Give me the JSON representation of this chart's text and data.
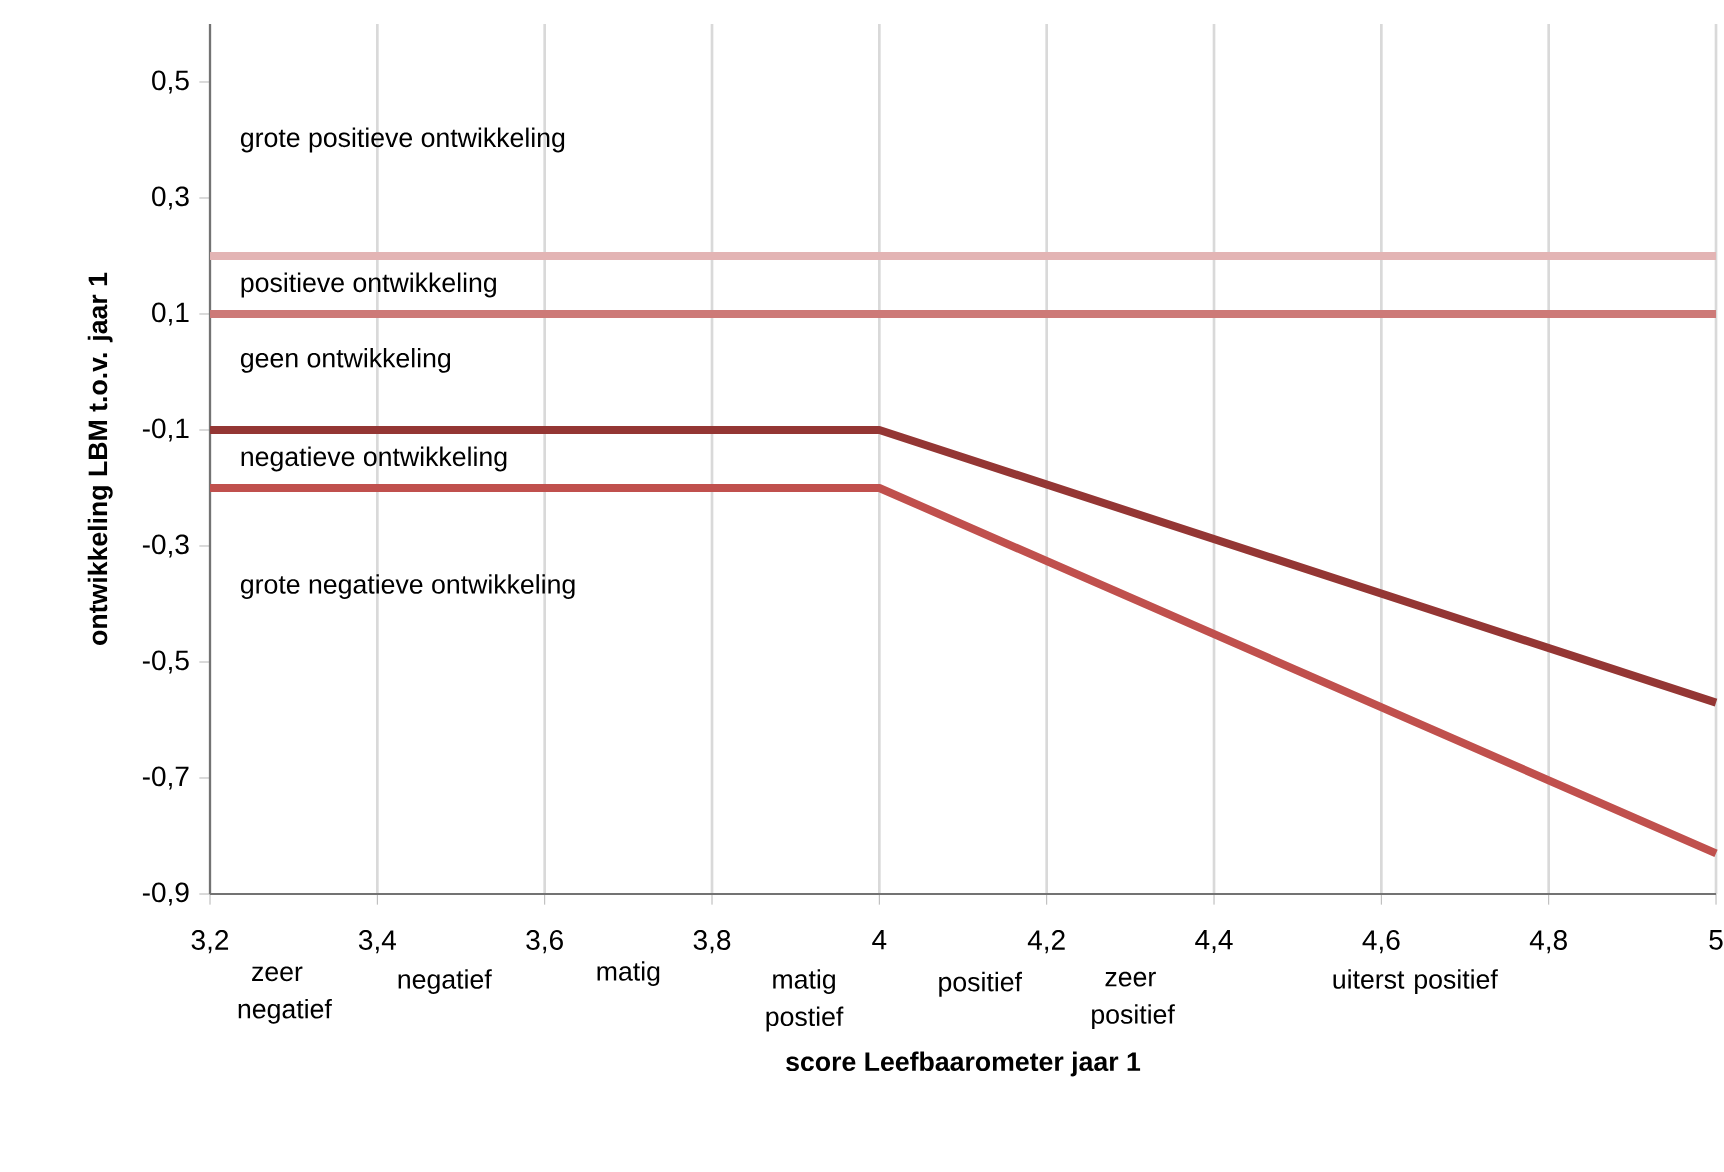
{
  "chart_data": {
    "type": "line",
    "xlabel": "score Leefbaarometer jaar 1",
    "ylabel": "ontwikkeling LBM t.o.v. jaar 1",
    "x": [
      3.2,
      4,
      5
    ],
    "series": [
      {
        "color": "#943634",
        "values": [
          -0.1,
          -0.1,
          -0.57
        ]
      },
      {
        "color": "#c0504d",
        "values": [
          -0.2,
          -0.2,
          -0.83
        ]
      }
    ],
    "xlim": [
      3.2,
      5
    ],
    "ylim": [
      -0.9,
      0.6
    ],
    "xticks": [
      {
        "value": 3.2,
        "label": "3,2"
      },
      {
        "value": 3.4,
        "label": "3,4"
      },
      {
        "value": 3.6,
        "label": "3,6"
      },
      {
        "value": 3.8,
        "label": "3,8"
      },
      {
        "value": 4,
        "label": "4"
      },
      {
        "value": 4.2,
        "label": "4,2"
      },
      {
        "value": 4.4,
        "label": "4,4"
      },
      {
        "value": 4.6,
        "label": "4,6"
      },
      {
        "value": 4.8,
        "label": "4,8"
      },
      {
        "value": 5,
        "label": "5"
      }
    ],
    "yticks": [
      {
        "value": -0.9,
        "label": "-0,9"
      },
      {
        "value": -0.7,
        "label": "-0,7"
      },
      {
        "value": -0.5,
        "label": "-0,5"
      },
      {
        "value": -0.3,
        "label": "-0,3"
      },
      {
        "value": -0.1,
        "label": "-0,1"
      },
      {
        "value": 0.1,
        "label": "0,1"
      },
      {
        "value": 0.3,
        "label": "0,3"
      },
      {
        "value": 0.5,
        "label": "0,5"
      }
    ],
    "ref_lines": [
      {
        "axis": "y",
        "value": 0.2,
        "color": "#e3b4b4"
      },
      {
        "axis": "y",
        "value": 0.1,
        "color": "#cd7a78"
      }
    ],
    "grid": "x",
    "marker": "none",
    "line_style": "solid",
    "annotations": [
      "grote positieve ontwikkeling",
      "positieve ontwikkeling",
      "geen ontwikkeling",
      "negatieve ontwikkeling",
      "grote negatieve ontwikkeling",
      "zeer negatief",
      "negatief",
      "matig",
      "matig postief",
      "positief",
      "zeer positief",
      "uiterst positief"
    ]
  }
}
